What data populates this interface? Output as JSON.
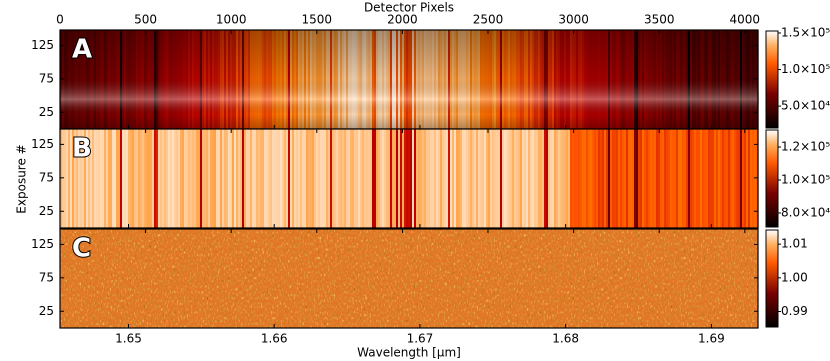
{
  "chart_data": {
    "type": "heatmap",
    "top_xlabel": "Detector Pixels",
    "top_xlim": [
      0,
      4077
    ],
    "top_xticks": [
      0,
      500,
      1000,
      1500,
      2000,
      2500,
      3000,
      3500,
      4000
    ],
    "xlabel": "Wavelength [μm]",
    "xlim": [
      1.6453,
      1.6932
    ],
    "xticks": [
      1.65,
      1.66,
      1.67,
      1.68,
      1.69
    ],
    "ylabel": "Exposure #",
    "ylim": [
      0,
      148
    ],
    "yticks": [
      25,
      75,
      125
    ],
    "panels": [
      {
        "label": "A",
        "colorbar_lim": [
          20000,
          152700
        ],
        "colorbar_ticks": [
          {
            "value": 150000,
            "label": "1.5×10⁵"
          },
          {
            "value": 100000,
            "label": "1.0×10⁵"
          },
          {
            "value": 50000,
            "label": "5.0×10⁴"
          }
        ]
      },
      {
        "label": "B",
        "colorbar_lim": [
          71500,
          130300
        ],
        "colorbar_ticks": [
          {
            "value": 120000,
            "label": "1.2×10⁵"
          },
          {
            "value": 100000,
            "label": "1.0×10⁵"
          },
          {
            "value": 80000,
            "label": "8.0×10⁴"
          }
        ]
      },
      {
        "label": "C",
        "colorbar_lim": [
          0.9854,
          1.0142
        ],
        "colorbar_ticks": [
          1.01,
          {
            "value": 1.0,
            "label": "1.00"
          },
          0.99
        ]
      }
    ]
  }
}
